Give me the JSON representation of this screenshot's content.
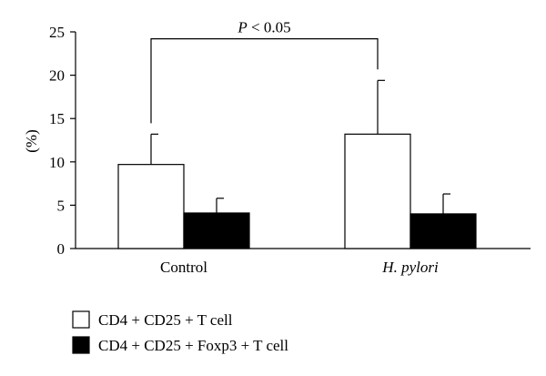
{
  "chart_data": {
    "type": "bar",
    "categories": [
      "Control",
      "H. pylori"
    ],
    "category_styles": [
      "normal",
      "italic"
    ],
    "series": [
      {
        "name": "CD4 + CD25 + T cell",
        "values": [
          9.7,
          13.2
        ],
        "error": [
          3.5,
          6.2
        ],
        "color": "#ffffff"
      },
      {
        "name": "CD4 + CD25 + Foxp3 + T cell",
        "values": [
          4.1,
          4.0
        ],
        "error": [
          1.7,
          2.3
        ],
        "color": "#000000"
      }
    ],
    "ylabel": "(%)",
    "xlabel": "",
    "ylim": [
      0,
      25
    ],
    "yticks": [
      "0",
      "5",
      "10",
      "15",
      "20",
      "25"
    ],
    "grid": false,
    "legend_position": "bottom-left",
    "annotation": {
      "prefix": "P",
      "text": " < 0.05",
      "between": [
        "Control",
        "H. pylori"
      ],
      "series": "CD4 + CD25 + T cell",
      "level": 24.2
    }
  }
}
